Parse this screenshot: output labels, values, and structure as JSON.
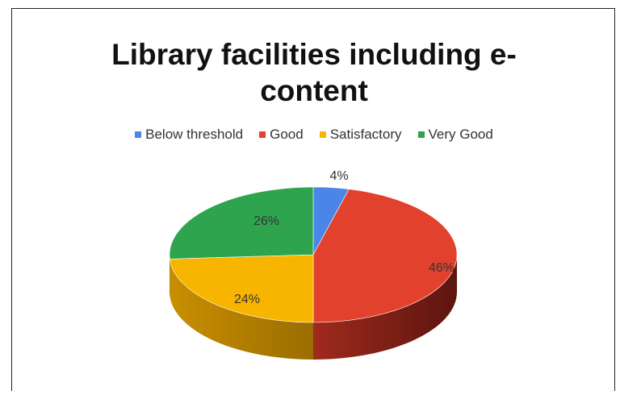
{
  "chart_data": {
    "type": "pie",
    "title": "Library facilities including e-content",
    "title_lines": [
      "Library facilities including e-",
      "content"
    ],
    "legend_position": "top",
    "slices": [
      {
        "name": "Below threshold",
        "value": 4,
        "label": "4%",
        "color": "#4a86e8"
      },
      {
        "name": "Good",
        "value": 46,
        "label": "46%",
        "color": "#e2412d"
      },
      {
        "name": "Satisfactory",
        "value": 24,
        "label": "24%",
        "color": "#f7b500"
      },
      {
        "name": "Very Good",
        "value": 26,
        "label": "26%",
        "color": "#2fa44f"
      }
    ],
    "style": "3d"
  }
}
